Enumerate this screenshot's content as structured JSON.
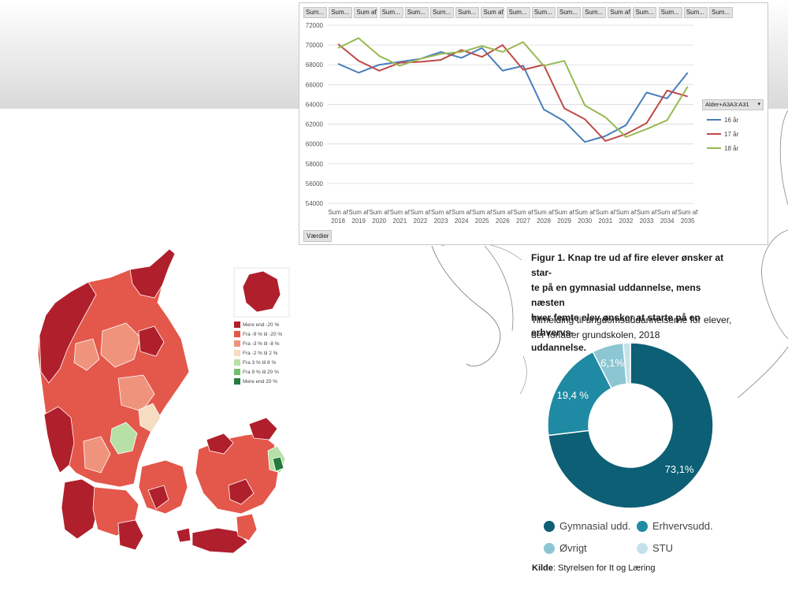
{
  "chart_data": [
    {
      "type": "line",
      "field_buttons": [
        "Sum...",
        "Sum...",
        "Sum af...",
        "Sum...",
        "Sum...",
        "Sum...",
        "Sum...",
        "Sum af...",
        "Sum...",
        "Sum...",
        "Sum...",
        "Sum...",
        "Sum af...",
        "Sum...",
        "Sum...",
        "Sum...",
        "Sum..."
      ],
      "x": [
        2018,
        2019,
        2020,
        2021,
        2022,
        2023,
        2024,
        2025,
        2026,
        2027,
        2028,
        2029,
        2030,
        2031,
        2032,
        2033,
        2034,
        2035
      ],
      "x_tick_prefix": "Sum af",
      "ylim": [
        54000,
        72000
      ],
      "yticks": [
        "72000",
        "70000",
        "68000",
        "66000",
        "64000",
        "62000",
        "60000",
        "58000",
        "56000",
        "54000"
      ],
      "grid": true,
      "legend_title": "Alder+A3A3:A31",
      "legend_position": "right",
      "values_button": "Værdier",
      "series": [
        {
          "name": "16 år",
          "color": "#4a7ebb",
          "values": [
            68100,
            67200,
            68000,
            68300,
            68600,
            69300,
            68700,
            69700,
            67400,
            67900,
            63500,
            62300,
            60200,
            60800,
            61900,
            65200,
            64600,
            67200
          ]
        },
        {
          "name": "17 år",
          "color": "#be4b48",
          "values": [
            70100,
            68400,
            67400,
            68200,
            68300,
            68500,
            69500,
            68800,
            70000,
            67500,
            68000,
            63600,
            62500,
            60300,
            61000,
            62100,
            65400,
            64800
          ]
        },
        {
          "name": "18 år",
          "color": "#98b954",
          "values": [
            69700,
            70700,
            68900,
            67900,
            68600,
            69100,
            69300,
            69900,
            69300,
            70300,
            67900,
            68400,
            63900,
            62700,
            60700,
            61500,
            62400,
            65800
          ]
        }
      ]
    },
    {
      "type": "pie",
      "style": "donut",
      "title": "Figur 1. Knap tre ud af fire elever ønsker at starte på en gymnasial uddannelse, mens næsten hver femte elev ønsker at starte på en erhvervsuddannelse.",
      "title_lines": [
        "Figur 1. Knap tre ud af fire elever ønsker at star-",
        "te på en gymnasial uddannelse, mens næsten",
        "hver femte elev ønsker at starte på en erhvervs-",
        "uddannelse."
      ],
      "subtitle_lines": [
        "Tilmelding til ungdomsuddannelserne for elever,",
        "der forlader grundskolen, 2018"
      ],
      "slices": [
        {
          "label": "Gymnasial udd.",
          "value": 73.1,
          "display": "73,1%",
          "color": "#0c5f74"
        },
        {
          "label": "Erhvervsudd.",
          "value": 19.4,
          "display": "19,4 %",
          "color": "#1f8aa3"
        },
        {
          "label": "Øvrigt",
          "value": 6.1,
          "display": "6,1%",
          "color": "#8cc6d3"
        },
        {
          "label": "STU",
          "value": 1.4,
          "display": "",
          "color": "#c4e2ea"
        }
      ],
      "source_label": "Kilde",
      "source_text": ": Styrelsen for It og Læring"
    }
  ],
  "map": {
    "legend": [
      {
        "label": "Mere end -20 %",
        "color": "#b01f2c"
      },
      {
        "label": "Fra -9 % til -20 %",
        "color": "#e4574b"
      },
      {
        "label": "Fra -3 % til -8 %",
        "color": "#f0937c"
      },
      {
        "label": "Fra -2 % til 2 %",
        "color": "#f6dcc0"
      },
      {
        "label": "Fra 3 % til 8 %",
        "color": "#b7e0a6"
      },
      {
        "label": "Fra 9 % til 20 %",
        "color": "#72bf6d"
      },
      {
        "label": "Mere end 20 %",
        "color": "#237a3c"
      }
    ]
  }
}
